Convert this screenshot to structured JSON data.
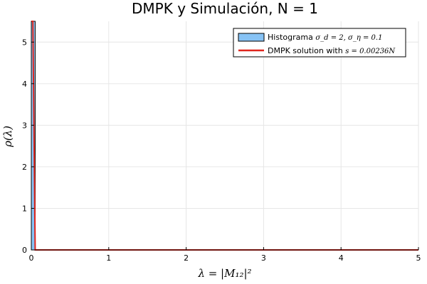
{
  "chart_data": {
    "type": "bar",
    "title": "DMPK y Simulación, N = 1",
    "xlabel": "λ = |M₁₂|²",
    "ylabel": "ρ(λ)",
    "xlim": [
      0,
      5
    ],
    "ylim": [
      0,
      5.5
    ],
    "xticks": [
      0,
      1,
      2,
      3,
      4,
      5
    ],
    "yticks": [
      0,
      1,
      2,
      3,
      4,
      5
    ],
    "grid": true,
    "legend_position": "top-right",
    "series": [
      {
        "name": "Histograma σ_d = 2, σ_η = 0.1",
        "type": "histogram",
        "color": "#87c3f5",
        "edge_color": "#000000",
        "bins": [
          {
            "x0": 0.0,
            "x1": 0.05,
            "value": 5.5
          }
        ]
      },
      {
        "name": "DMPK solution with s = 0.00236N",
        "type": "line",
        "color": "#e0261e",
        "x": [
          0,
          0.01,
          0.02,
          0.05,
          1,
          2,
          3,
          4,
          5
        ],
        "y": [
          5.5,
          5.5,
          5.5,
          0.0,
          0.0,
          0.0,
          0.0,
          0.0,
          0.0
        ]
      }
    ],
    "legend": [
      {
        "label_text": "Histograma ",
        "label_math": "σ_d = 2, σ_η = 0.1"
      },
      {
        "label_text": "DMPK solution with ",
        "label_math": "s = 0.00236N"
      }
    ]
  }
}
